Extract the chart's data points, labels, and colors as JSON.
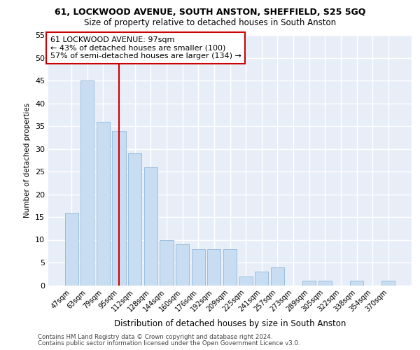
{
  "title1": "61, LOCKWOOD AVENUE, SOUTH ANSTON, SHEFFIELD, S25 5GQ",
  "title2": "Size of property relative to detached houses in South Anston",
  "xlabel": "Distribution of detached houses by size in South Anston",
  "ylabel": "Number of detached properties",
  "categories": [
    "47sqm",
    "63sqm",
    "79sqm",
    "95sqm",
    "112sqm",
    "128sqm",
    "144sqm",
    "160sqm",
    "176sqm",
    "192sqm",
    "209sqm",
    "225sqm",
    "241sqm",
    "257sqm",
    "273sqm",
    "289sqm",
    "305sqm",
    "322sqm",
    "338sqm",
    "354sqm",
    "370sqm"
  ],
  "values": [
    16,
    45,
    36,
    34,
    29,
    26,
    10,
    9,
    8,
    8,
    8,
    2,
    3,
    4,
    0,
    1,
    1,
    0,
    1,
    0,
    1
  ],
  "bar_color": "#c8ddf2",
  "bar_edge_color": "#9bbedd",
  "vline_color": "#cc0000",
  "vline_x": 3.0,
  "annotation_text": "61 LOCKWOOD AVENUE: 97sqm\n← 43% of detached houses are smaller (100)\n57% of semi-detached houses are larger (134) →",
  "annotation_box_facecolor": "#ffffff",
  "annotation_box_edgecolor": "#cc0000",
  "bg_color": "#e8eef8",
  "grid_color": "#ffffff",
  "ylim": [
    0,
    55
  ],
  "yticks": [
    0,
    5,
    10,
    15,
    20,
    25,
    30,
    35,
    40,
    45,
    50,
    55
  ],
  "footer1": "Contains HM Land Registry data © Crown copyright and database right 2024.",
  "footer2": "Contains public sector information licensed under the Open Government Licence v3.0."
}
